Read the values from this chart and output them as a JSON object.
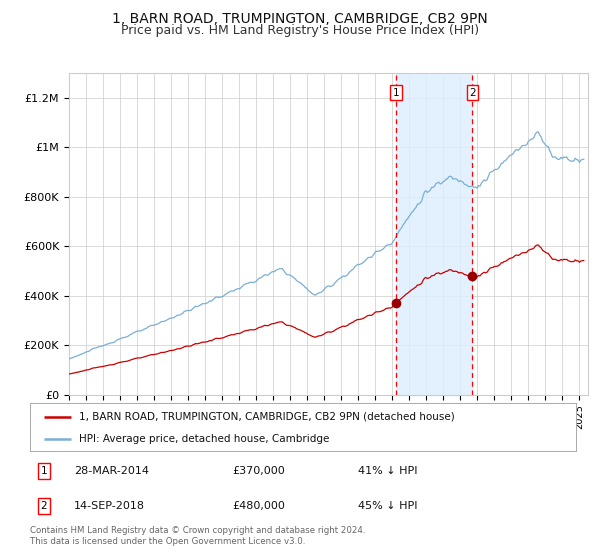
{
  "title": "1, BARN ROAD, TRUMPINGTON, CAMBRIDGE, CB2 9PN",
  "subtitle": "Price paid vs. HM Land Registry's House Price Index (HPI)",
  "title_fontsize": 10,
  "subtitle_fontsize": 9,
  "hpi_color": "#7bafd4",
  "hpi_fill_color": "#ddeeff",
  "price_color": "#cc0000",
  "marker_color": "#990000",
  "grid_color": "#cccccc",
  "background_color": "#ffffff",
  "ylim": [
    0,
    1300000
  ],
  "xlim_start": 1995.0,
  "xlim_end": 2025.5,
  "transaction1_date": 2014.24,
  "transaction1_price": 370000,
  "transaction1_label": "28-MAR-2014",
  "transaction1_hpi_pct": "41% ↓ HPI",
  "transaction2_date": 2018.71,
  "transaction2_price": 480000,
  "transaction2_label": "14-SEP-2018",
  "transaction2_hpi_pct": "45% ↓ HPI",
  "legend_label_price": "1, BARN ROAD, TRUMPINGTON, CAMBRIDGE, CB2 9PN (detached house)",
  "legend_label_hpi": "HPI: Average price, detached house, Cambridge",
  "footer": "Contains HM Land Registry data © Crown copyright and database right 2024.\nThis data is licensed under the Open Government Licence v3.0.",
  "ytick_labels": [
    "£0",
    "£200K",
    "£400K",
    "£600K",
    "£800K",
    "£1M",
    "£1.2M"
  ],
  "ytick_values": [
    0,
    200000,
    400000,
    600000,
    800000,
    1000000,
    1200000
  ]
}
